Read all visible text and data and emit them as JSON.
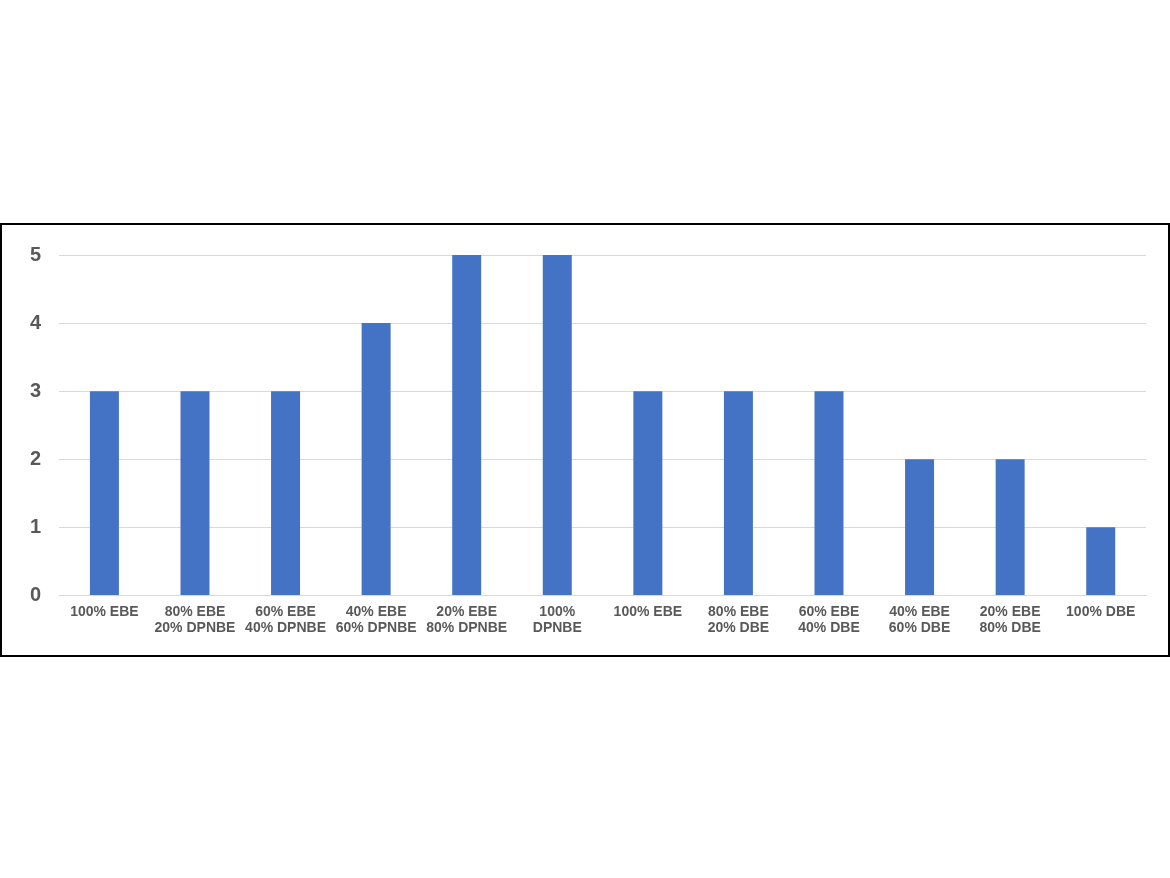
{
  "chart_data": {
    "type": "bar",
    "categories": [
      "100% EBE",
      "80% EBE\n20% DPNBE",
      "60% EBE\n40% DPNBE",
      "40% EBE\n60% DPNBE",
      "20% EBE\n80% DPNBE",
      "100%\nDPNBE",
      "100% EBE",
      "80% EBE\n20% DBE",
      "60% EBE\n40% DBE",
      "40% EBE\n60% DBE",
      "20% EBE\n80% DBE",
      "100% DBE"
    ],
    "values": [
      3,
      3,
      3,
      4,
      5,
      5,
      3,
      3,
      3,
      2,
      2,
      1
    ],
    "color": "#4472c4",
    "ylim": [
      0,
      5
    ],
    "yticks": [
      0,
      1,
      2,
      3,
      4,
      5
    ],
    "grid": "y",
    "legend": false
  }
}
